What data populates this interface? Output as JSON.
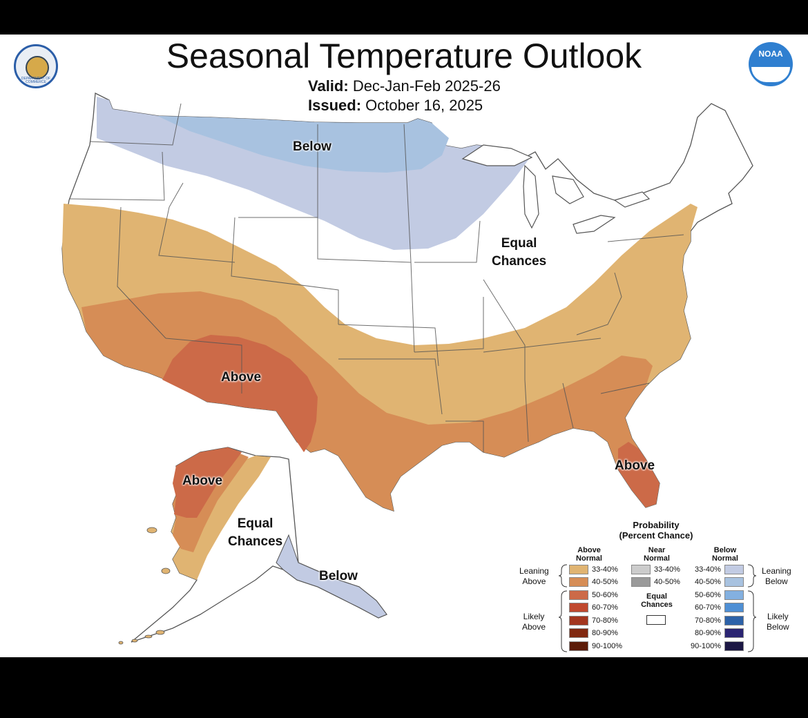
{
  "header": {
    "title": "Seasonal Temperature Outlook",
    "valid_label": "Valid:",
    "valid_value": "Dec-Jan-Feb 2025-26",
    "issued_label": "Issued:",
    "issued_value": "October 16, 2025"
  },
  "logos": {
    "commerce_text": "DEPARTMENT OF COMMERCE",
    "noaa_text": "NOAA"
  },
  "regions": {
    "below_north": "Below",
    "equal_east_1": "Equal",
    "equal_east_2": "Chances",
    "above_southwest": "Above",
    "above_florida": "Above",
    "above_alaska": "Above",
    "equal_alaska_1": "Equal",
    "equal_alaska_2": "Chances",
    "below_alaska": "Below"
  },
  "legend": {
    "title_1": "Probability",
    "title_2": "(Percent Chance)",
    "above_header_1": "Above",
    "above_header_2": "Normal",
    "near_header_1": "Near",
    "near_header_2": "Normal",
    "below_header_1": "Below",
    "below_header_2": "Normal",
    "leaning_above_1": "Leaning",
    "leaning_above_2": "Above",
    "likely_above_1": "Likely",
    "likely_above_2": "Above",
    "leaning_below_1": "Leaning",
    "leaning_below_2": "Below",
    "likely_below_1": "Likely",
    "likely_below_2": "Below",
    "equal_1": "Equal",
    "equal_2": "Chances",
    "above": [
      {
        "label": "33-40%",
        "color": "#e0b472"
      },
      {
        "label": "40-50%",
        "color": "#d68d56"
      },
      {
        "label": "50-60%",
        "color": "#cc6a48"
      },
      {
        "label": "60-70%",
        "color": "#c0492f"
      },
      {
        "label": "70-80%",
        "color": "#a3361f"
      },
      {
        "label": "80-90%",
        "color": "#812810"
      },
      {
        "label": "90-100%",
        "color": "#5c1b08"
      }
    ],
    "near": [
      {
        "label": "33-40%",
        "color": "#cccccc"
      },
      {
        "label": "40-50%",
        "color": "#9a9a9a"
      }
    ],
    "below": [
      {
        "label": "33-40%",
        "color": "#c2cbe3"
      },
      {
        "label": "40-50%",
        "color": "#a8c2e0"
      },
      {
        "label": "50-60%",
        "color": "#83b0e0"
      },
      {
        "label": "60-70%",
        "color": "#4f8fd4"
      },
      {
        "label": "70-80%",
        "color": "#2d62a8"
      },
      {
        "label": "80-90%",
        "color": "#2a2472"
      },
      {
        "label": "90-100%",
        "color": "#1c1744"
      }
    ]
  },
  "colors": {
    "above_33": "#e0b472",
    "above_40": "#d68d56",
    "above_50": "#cc6a48",
    "below_33": "#c2cbe3",
    "below_40": "#a8c2e0",
    "border": "#555555"
  }
}
